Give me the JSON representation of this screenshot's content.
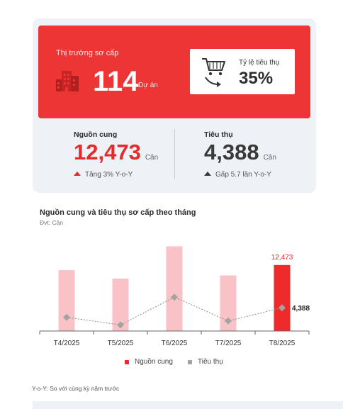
{
  "summary": {
    "market_label": "Thị trường sơ cấp",
    "project_count": "114",
    "project_unit": "Dự án",
    "absorption_label": "Tỷ lệ tiêu thụ",
    "absorption_value": "35%",
    "supply": {
      "title": "Nguồn cung",
      "value": "12,473",
      "unit": "Căn",
      "change": "Tăng 3% Y-o-Y",
      "color": "#e32b2b"
    },
    "sales": {
      "title": "Tiêu thụ",
      "value": "4,388",
      "unit": "Căn",
      "change": "Gấp 5.7 lần Y-o-Y",
      "color": "#3a3a3a"
    }
  },
  "chart_data": {
    "type": "bar",
    "title": "Nguồn cung và tiêu thụ sơ cấp theo tháng",
    "subtitle": "Đvt: Căn",
    "categories": [
      "T4/2025",
      "T5/2025",
      "T6/2025",
      "T7/2025",
      "T8/2025"
    ],
    "series": [
      {
        "name": "Nguồn cung",
        "kind": "bar",
        "values": [
          11500,
          9900,
          16000,
          10500,
          12473
        ],
        "color": "#f9c2c6",
        "highlight_color": "#ee2a2a"
      },
      {
        "name": "Tiêu thụ",
        "kind": "line",
        "values": [
          2600,
          1150,
          6400,
          1900,
          4388
        ],
        "color": "#a3a3a3"
      }
    ],
    "labels": [
      {
        "series": "Nguồn cung",
        "category": "T8/2025",
        "text": "12,473",
        "color": "#e32b2b"
      },
      {
        "series": "Tiêu thụ",
        "category": "T8/2025",
        "text": "4,388",
        "color": "#222222"
      }
    ],
    "ylim": [
      0,
      17000
    ],
    "grid": false,
    "legend": "bottom-center"
  },
  "footnote": "Y-o-Y: So với cùng kỳ năm trước"
}
